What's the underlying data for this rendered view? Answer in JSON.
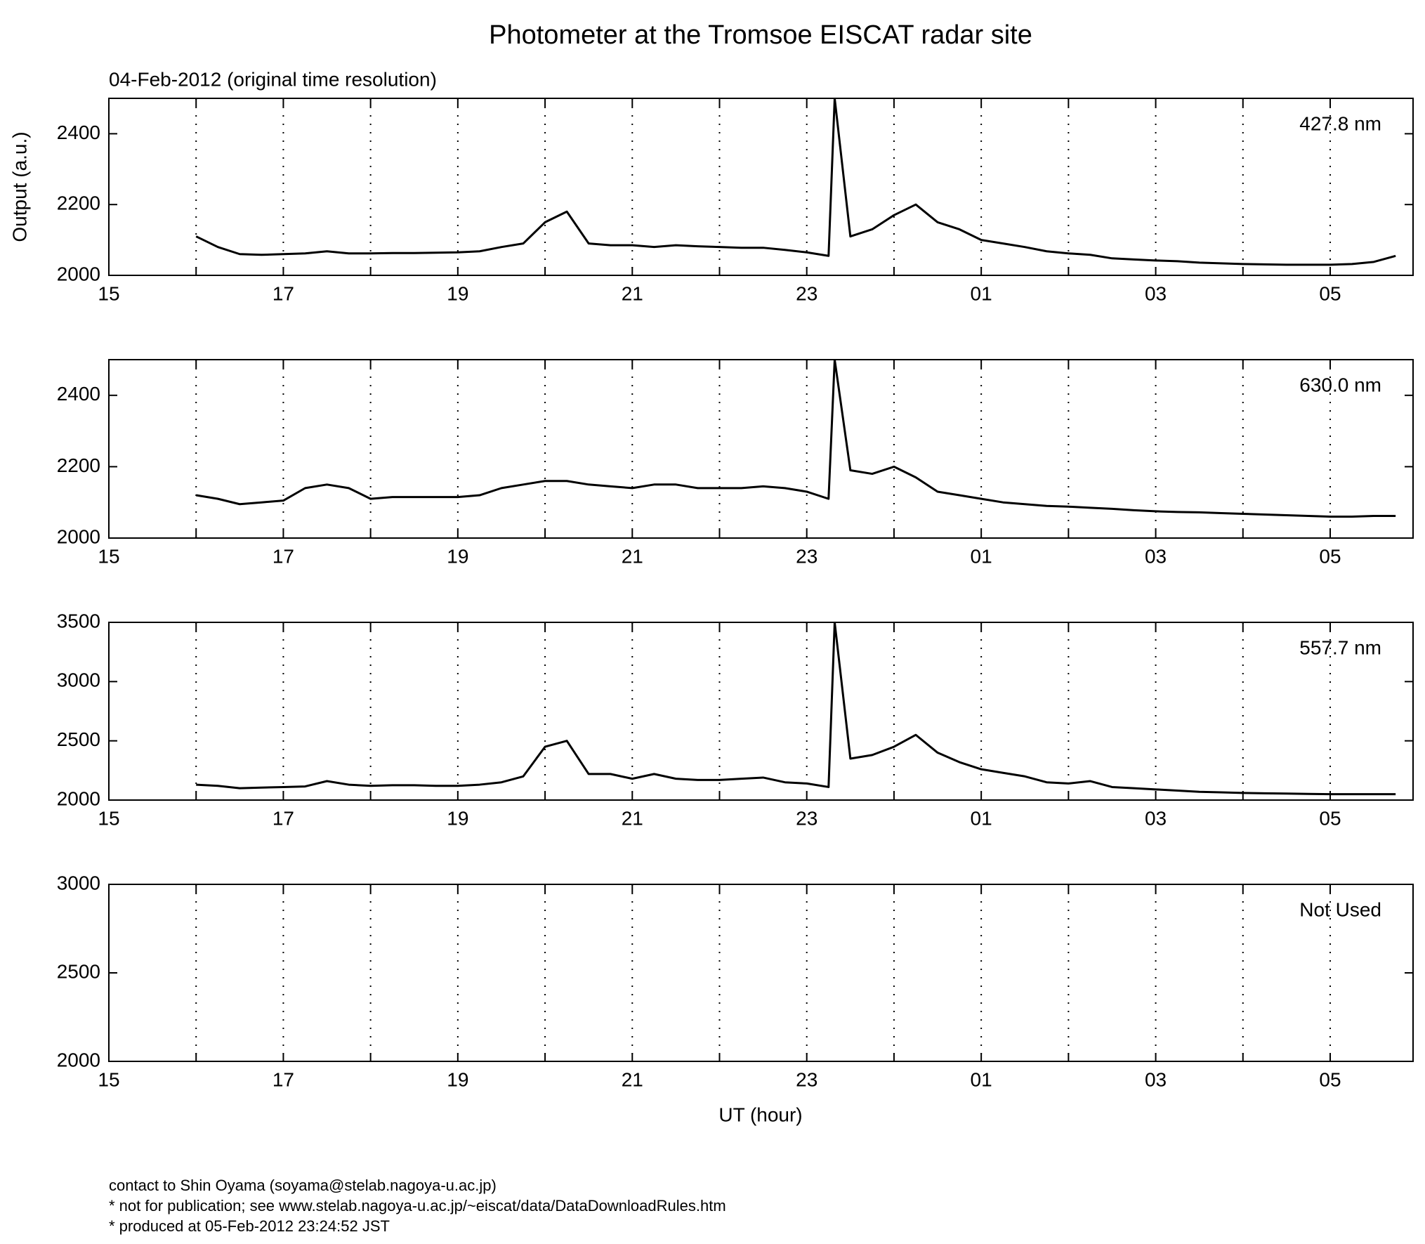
{
  "header": {
    "title": "Photometer at the Tromsoe EISCAT radar site",
    "subtitle": "04-Feb-2012 (original time resolution)",
    "y_label": "Output (a.u.)",
    "x_label": "UT (hour)",
    "footer": [
      "contact to Shin Oyama (soyama@stelab.nagoya-u.ac.jp)",
      "* not for publication; see www.stelab.nagoya-u.ac.jp/~eiscat/data/DataDownloadRules.htm",
      "* produced at 05-Feb-2012 23:24:52 JST"
    ]
  },
  "chart_data": [
    {
      "type": "line",
      "annotation": "427.8 nm",
      "xlim": [
        15,
        29.95
      ],
      "ylim": [
        2000,
        2500
      ],
      "yticks": [
        2000,
        2200,
        2400
      ],
      "xticks": [
        15,
        17,
        19,
        21,
        23,
        {
          "value": 25,
          "label": "01"
        },
        {
          "value": 27,
          "label": "03"
        },
        {
          "value": 29,
          "label": "05"
        }
      ],
      "xminorticks": [
        16,
        18,
        20,
        22,
        24,
        26,
        28
      ],
      "grid": true,
      "x": [
        16,
        16.25,
        16.5,
        16.75,
        17,
        17.25,
        17.5,
        17.75,
        18,
        18.25,
        18.5,
        18.75,
        19,
        19.25,
        19.5,
        19.75,
        20,
        20.25,
        20.5,
        20.75,
        21,
        21.25,
        21.5,
        21.75,
        22,
        22.25,
        22.5,
        22.75,
        23,
        23.25,
        23.32,
        23.5,
        23.75,
        24,
        24.25,
        24.5,
        24.75,
        25,
        25.25,
        25.5,
        25.75,
        26,
        26.25,
        26.5,
        26.75,
        27,
        27.25,
        27.5,
        27.75,
        28,
        28.25,
        28.5,
        28.75,
        29,
        29.25,
        29.5,
        29.75
      ],
      "series": [
        {
          "color": "#000000",
          "values": [
            2110,
            2080,
            2060,
            2058,
            2060,
            2062,
            2068,
            2062,
            2062,
            2063,
            2063,
            2064,
            2065,
            2068,
            2080,
            2090,
            2150,
            2180,
            2090,
            2085,
            2085,
            2080,
            2085,
            2082,
            2080,
            2078,
            2078,
            2072,
            2065,
            2055,
            2500,
            2110,
            2130,
            2170,
            2200,
            2150,
            2130,
            2100,
            2090,
            2080,
            2068,
            2062,
            2058,
            2048,
            2045,
            2042,
            2040,
            2036,
            2034,
            2032,
            2031,
            2030,
            2030,
            2030,
            2032,
            2038,
            2055
          ]
        }
      ]
    },
    {
      "type": "line",
      "annotation": "630.0 nm",
      "xlim": [
        15,
        29.95
      ],
      "ylim": [
        2000,
        2500
      ],
      "yticks": [
        2000,
        2200,
        2400
      ],
      "xticks": [
        15,
        17,
        19,
        21,
        23,
        {
          "value": 25,
          "label": "01"
        },
        {
          "value": 27,
          "label": "03"
        },
        {
          "value": 29,
          "label": "05"
        }
      ],
      "xminorticks": [
        16,
        18,
        20,
        22,
        24,
        26,
        28
      ],
      "grid": true,
      "x": [
        16,
        16.25,
        16.5,
        16.75,
        17,
        17.25,
        17.5,
        17.75,
        18,
        18.25,
        18.5,
        18.75,
        19,
        19.25,
        19.5,
        19.75,
        20,
        20.25,
        20.5,
        20.75,
        21,
        21.25,
        21.5,
        21.75,
        22,
        22.25,
        22.5,
        22.75,
        23,
        23.25,
        23.32,
        23.5,
        23.75,
        24,
        24.25,
        24.5,
        24.75,
        25,
        25.25,
        25.5,
        25.75,
        26,
        26.25,
        26.5,
        26.75,
        27,
        27.25,
        27.5,
        27.75,
        28,
        28.25,
        28.5,
        28.75,
        29,
        29.25,
        29.5,
        29.75
      ],
      "series": [
        {
          "color": "#000000",
          "values": [
            2120,
            2110,
            2095,
            2100,
            2105,
            2140,
            2150,
            2140,
            2110,
            2115,
            2115,
            2115,
            2115,
            2120,
            2140,
            2150,
            2160,
            2160,
            2150,
            2145,
            2140,
            2150,
            2150,
            2140,
            2140,
            2140,
            2145,
            2140,
            2130,
            2110,
            2500,
            2190,
            2180,
            2200,
            2170,
            2130,
            2120,
            2110,
            2100,
            2095,
            2090,
            2088,
            2085,
            2082,
            2078,
            2075,
            2073,
            2072,
            2070,
            2068,
            2066,
            2064,
            2062,
            2060,
            2060,
            2062,
            2062
          ]
        }
      ]
    },
    {
      "type": "line",
      "annotation": "557.7 nm",
      "xlim": [
        15,
        29.95
      ],
      "ylim": [
        2000,
        3500
      ],
      "yticks": [
        2000,
        2500,
        3000,
        3500
      ],
      "xticks": [
        15,
        17,
        19,
        21,
        23,
        {
          "value": 25,
          "label": "01"
        },
        {
          "value": 27,
          "label": "03"
        },
        {
          "value": 29,
          "label": "05"
        }
      ],
      "xminorticks": [
        16,
        18,
        20,
        22,
        24,
        26,
        28
      ],
      "grid": true,
      "x": [
        16,
        16.25,
        16.5,
        16.75,
        17,
        17.25,
        17.5,
        17.75,
        18,
        18.25,
        18.5,
        18.75,
        19,
        19.25,
        19.5,
        19.75,
        20,
        20.25,
        20.5,
        20.75,
        21,
        21.25,
        21.5,
        21.75,
        22,
        22.25,
        22.5,
        22.75,
        23,
        23.25,
        23.32,
        23.5,
        23.75,
        24,
        24.25,
        24.5,
        24.75,
        25,
        25.25,
        25.5,
        25.75,
        26,
        26.25,
        26.5,
        26.75,
        27,
        27.25,
        27.5,
        27.75,
        28,
        28.25,
        28.5,
        28.75,
        29,
        29.25,
        29.5,
        29.75
      ],
      "series": [
        {
          "color": "#000000",
          "values": [
            2130,
            2120,
            2100,
            2105,
            2110,
            2115,
            2160,
            2130,
            2120,
            2125,
            2125,
            2120,
            2120,
            2130,
            2150,
            2200,
            2450,
            2500,
            2220,
            2220,
            2180,
            2220,
            2180,
            2170,
            2170,
            2180,
            2190,
            2150,
            2140,
            2110,
            3500,
            2350,
            2380,
            2450,
            2550,
            2400,
            2320,
            2260,
            2230,
            2200,
            2150,
            2140,
            2160,
            2110,
            2100,
            2090,
            2080,
            2070,
            2065,
            2060,
            2057,
            2055,
            2052,
            2050,
            2050,
            2050,
            2050
          ]
        }
      ]
    },
    {
      "type": "line",
      "annotation": "Not Used",
      "xlim": [
        15,
        29.95
      ],
      "ylim": [
        2000,
        3000
      ],
      "yticks": [
        2000,
        2500,
        3000
      ],
      "xticks": [
        15,
        17,
        19,
        21,
        23,
        {
          "value": 25,
          "label": "01"
        },
        {
          "value": 27,
          "label": "03"
        },
        {
          "value": 29,
          "label": "05"
        }
      ],
      "xminorticks": [
        16,
        18,
        20,
        22,
        24,
        26,
        28
      ],
      "grid": true,
      "x": [],
      "series": []
    }
  ]
}
